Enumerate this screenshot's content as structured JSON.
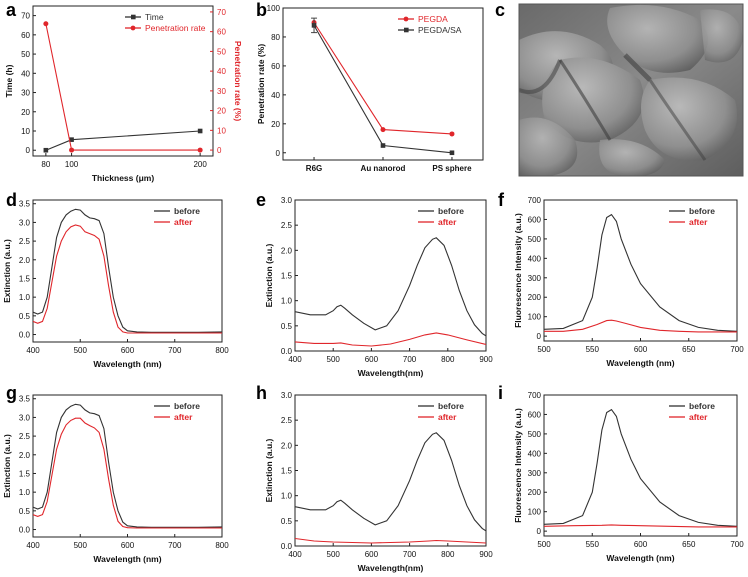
{
  "colors": {
    "black": "#333333",
    "red": "#e0262b",
    "axis": "#222222"
  },
  "panels": [
    {
      "label": "a"
    },
    {
      "label": "b"
    },
    {
      "label": "c"
    },
    {
      "label": "d"
    },
    {
      "label": "e"
    },
    {
      "label": "f"
    },
    {
      "label": "g"
    },
    {
      "label": "h"
    },
    {
      "label": "i"
    }
  ],
  "chart_data": [
    {
      "panel": "a",
      "type": "line",
      "xlabel": "Thickness (μm)",
      "ylabel": "Time (h)",
      "ylabel_right": "Penetration rate (%)",
      "xlim": [
        70,
        210
      ],
      "xticks": [
        80,
        100,
        200
      ],
      "ylim": [
        -3,
        75
      ],
      "yticks": [
        0,
        10,
        20,
        30,
        40,
        50,
        60,
        70
      ],
      "ylim_right": [
        -3,
        73
      ],
      "yticks_right": [
        0,
        10,
        20,
        30,
        40,
        50,
        60,
        70
      ],
      "legend": "top-right",
      "series": [
        {
          "name": "Time",
          "axis": "left",
          "color": "#333333",
          "marker": "square",
          "x": [
            80,
            100,
            200
          ],
          "y": [
            0,
            5.5,
            10
          ]
        },
        {
          "name": "Penetration rate",
          "axis": "right",
          "color": "#e0262b",
          "marker": "circle",
          "x": [
            80,
            100,
            200
          ],
          "y": [
            64,
            0,
            0
          ]
        }
      ]
    },
    {
      "panel": "b",
      "type": "line",
      "xlabel": "",
      "ylabel": "Penetration rate (%)",
      "categories": [
        "R6G",
        "Au nanorod",
        "PS sphere"
      ],
      "ylim": [
        -5,
        100
      ],
      "yticks": [
        0,
        20,
        40,
        60,
        80,
        100
      ],
      "legend": "top-right",
      "series": [
        {
          "name": "PEGDA",
          "color": "#e0262b",
          "marker": "circle",
          "values": [
            90,
            16,
            13
          ]
        },
        {
          "name": "PEGDA/SA",
          "color": "#333333",
          "marker": "square",
          "values": [
            88,
            5,
            0
          ]
        }
      ]
    },
    {
      "panel": "d",
      "type": "line",
      "xlabel": "Wavelength (nm)",
      "ylabel": "Extinction (a.u.)",
      "xlim": [
        400,
        800
      ],
      "xticks": [
        400,
        500,
        600,
        700,
        800
      ],
      "ylim": [
        -0.2,
        3.6
      ],
      "yticks": [
        0.0,
        0.5,
        1.0,
        1.5,
        2.0,
        2.5,
        3.0,
        3.5
      ],
      "yfmt": 1,
      "legend": "top-right",
      "series": [
        {
          "name": "before",
          "color": "#333333",
          "x": [
            400,
            410,
            420,
            430,
            440,
            450,
            460,
            470,
            480,
            490,
            500,
            510,
            520,
            530,
            540,
            550,
            560,
            570,
            580,
            590,
            600,
            620,
            650,
            700,
            750,
            800
          ],
          "y": [
            0.6,
            0.55,
            0.6,
            1.0,
            1.8,
            2.6,
            3.0,
            3.2,
            3.3,
            3.35,
            3.33,
            3.2,
            3.12,
            3.1,
            3.05,
            2.7,
            1.8,
            1.0,
            0.5,
            0.2,
            0.1,
            0.07,
            0.06,
            0.06,
            0.06,
            0.07
          ]
        },
        {
          "name": "after",
          "color": "#e0262b",
          "x": [
            400,
            410,
            420,
            430,
            440,
            450,
            460,
            470,
            480,
            490,
            500,
            510,
            520,
            530,
            540,
            550,
            560,
            570,
            580,
            590,
            600,
            620,
            650,
            700,
            750,
            800
          ],
          "y": [
            0.35,
            0.3,
            0.35,
            0.7,
            1.4,
            2.1,
            2.5,
            2.75,
            2.88,
            2.93,
            2.9,
            2.75,
            2.7,
            2.65,
            2.55,
            2.1,
            1.3,
            0.6,
            0.2,
            0.07,
            0.04,
            0.04,
            0.04,
            0.04,
            0.04,
            0.04
          ]
        }
      ]
    },
    {
      "panel": "e",
      "type": "line",
      "xlabel": "Wavelength(nm)",
      "ylabel": "Extinction (a.u.)",
      "xlim": [
        400,
        900
      ],
      "xticks": [
        400,
        500,
        600,
        700,
        800,
        900
      ],
      "ylim": [
        0,
        3.0
      ],
      "yticks": [
        0.0,
        0.5,
        1.0,
        1.5,
        2.0,
        2.5,
        3.0
      ],
      "yfmt": 1,
      "legend": "top-right",
      "series": [
        {
          "name": "before",
          "color": "#333333",
          "x": [
            400,
            440,
            480,
            500,
            510,
            520,
            530,
            550,
            580,
            610,
            640,
            670,
            700,
            720,
            740,
            760,
            770,
            790,
            810,
            830,
            850,
            870,
            890,
            900
          ],
          "y": [
            0.78,
            0.72,
            0.72,
            0.8,
            0.88,
            0.91,
            0.85,
            0.72,
            0.55,
            0.42,
            0.5,
            0.8,
            1.3,
            1.7,
            2.05,
            2.22,
            2.25,
            2.1,
            1.7,
            1.2,
            0.8,
            0.52,
            0.35,
            0.3
          ]
        },
        {
          "name": "after",
          "color": "#e0262b",
          "x": [
            400,
            450,
            500,
            520,
            550,
            600,
            650,
            700,
            740,
            770,
            800,
            850,
            900
          ],
          "y": [
            0.18,
            0.15,
            0.15,
            0.16,
            0.12,
            0.1,
            0.14,
            0.23,
            0.32,
            0.36,
            0.32,
            0.22,
            0.13
          ]
        }
      ]
    },
    {
      "panel": "f",
      "type": "line",
      "xlabel": "Wavelength (nm)",
      "ylabel": "Fluorescence Intensity (a.u.)",
      "xlim": [
        500,
        700
      ],
      "xticks": [
        500,
        550,
        600,
        650,
        700
      ],
      "ylim": [
        -25,
        700
      ],
      "yticks": [
        0,
        100,
        200,
        300,
        400,
        500,
        600,
        700
      ],
      "yfmt": 0,
      "legend": "top-right",
      "series": [
        {
          "name": "before",
          "color": "#333333",
          "x": [
            500,
            520,
            540,
            550,
            555,
            560,
            565,
            570,
            575,
            580,
            590,
            600,
            620,
            640,
            660,
            680,
            700
          ],
          "y": [
            35,
            40,
            80,
            200,
            350,
            520,
            610,
            625,
            590,
            500,
            370,
            270,
            150,
            80,
            45,
            30,
            25
          ]
        },
        {
          "name": "after",
          "color": "#e0262b",
          "x": [
            500,
            520,
            540,
            555,
            565,
            570,
            575,
            585,
            600,
            620,
            640,
            660,
            680,
            700
          ],
          "y": [
            25,
            25,
            35,
            60,
            80,
            82,
            78,
            65,
            45,
            30,
            25,
            22,
            22,
            22
          ]
        }
      ]
    },
    {
      "panel": "g",
      "type": "line",
      "xlabel": "Wavelength (nm)",
      "ylabel": "Extinction (a.u.)",
      "xlim": [
        400,
        800
      ],
      "xticks": [
        400,
        500,
        600,
        700,
        800
      ],
      "ylim": [
        -0.2,
        3.6
      ],
      "yticks": [
        0.0,
        0.5,
        1.0,
        1.5,
        2.0,
        2.5,
        3.0,
        3.5
      ],
      "yfmt": 1,
      "legend": "top-right",
      "series": [
        {
          "name": "before",
          "color": "#333333",
          "x": [
            400,
            410,
            420,
            430,
            440,
            450,
            460,
            470,
            480,
            490,
            500,
            510,
            520,
            530,
            540,
            550,
            560,
            570,
            580,
            590,
            600,
            620,
            650,
            700,
            750,
            800
          ],
          "y": [
            0.6,
            0.55,
            0.6,
            1.0,
            1.8,
            2.6,
            3.0,
            3.2,
            3.3,
            3.35,
            3.33,
            3.2,
            3.12,
            3.1,
            3.05,
            2.7,
            1.8,
            1.0,
            0.5,
            0.2,
            0.1,
            0.07,
            0.06,
            0.06,
            0.06,
            0.07
          ]
        },
        {
          "name": "after",
          "color": "#e0262b",
          "x": [
            400,
            410,
            420,
            430,
            440,
            450,
            460,
            470,
            480,
            490,
            500,
            510,
            520,
            530,
            540,
            550,
            560,
            570,
            580,
            590,
            600,
            620,
            650,
            700,
            750,
            800
          ],
          "y": [
            0.4,
            0.35,
            0.4,
            0.75,
            1.45,
            2.15,
            2.55,
            2.8,
            2.92,
            2.98,
            2.98,
            2.85,
            2.78,
            2.72,
            2.6,
            2.15,
            1.35,
            0.65,
            0.22,
            0.08,
            0.05,
            0.04,
            0.04,
            0.04,
            0.04,
            0.04
          ]
        }
      ]
    },
    {
      "panel": "h",
      "type": "line",
      "xlabel": "Wavelength(nm)",
      "ylabel": "Extinction (a.u.)",
      "xlim": [
        400,
        900
      ],
      "xticks": [
        400,
        500,
        600,
        700,
        800,
        900
      ],
      "ylim": [
        0,
        3.0
      ],
      "yticks": [
        0.0,
        0.5,
        1.0,
        1.5,
        2.0,
        2.5,
        3.0
      ],
      "yfmt": 1,
      "legend": "top-right",
      "series": [
        {
          "name": "before",
          "color": "#333333",
          "x": [
            400,
            440,
            480,
            500,
            510,
            520,
            530,
            550,
            580,
            610,
            640,
            670,
            700,
            720,
            740,
            760,
            770,
            790,
            810,
            830,
            850,
            870,
            890,
            900
          ],
          "y": [
            0.78,
            0.72,
            0.72,
            0.8,
            0.88,
            0.91,
            0.85,
            0.72,
            0.55,
            0.42,
            0.5,
            0.8,
            1.3,
            1.7,
            2.05,
            2.22,
            2.25,
            2.1,
            1.7,
            1.2,
            0.8,
            0.52,
            0.35,
            0.3
          ]
        },
        {
          "name": "after",
          "color": "#e0262b",
          "x": [
            400,
            450,
            500,
            550,
            600,
            650,
            700,
            750,
            770,
            800,
            850,
            900
          ],
          "y": [
            0.15,
            0.1,
            0.08,
            0.07,
            0.06,
            0.07,
            0.08,
            0.1,
            0.11,
            0.1,
            0.08,
            0.06
          ]
        }
      ]
    },
    {
      "panel": "i",
      "type": "line",
      "xlabel": "Wavelength (nm)",
      "ylabel": "Fluorescence Intensity (a.u.)",
      "xlim": [
        500,
        700
      ],
      "xticks": [
        500,
        550,
        600,
        650,
        700
      ],
      "ylim": [
        -25,
        700
      ],
      "yticks": [
        0,
        100,
        200,
        300,
        400,
        500,
        600,
        700
      ],
      "yfmt": 0,
      "legend": "top-right",
      "series": [
        {
          "name": "before",
          "color": "#333333",
          "x": [
            500,
            520,
            540,
            550,
            555,
            560,
            565,
            570,
            575,
            580,
            590,
            600,
            620,
            640,
            660,
            680,
            700
          ],
          "y": [
            35,
            40,
            80,
            200,
            350,
            520,
            610,
            625,
            590,
            500,
            370,
            270,
            150,
            80,
            45,
            30,
            25
          ]
        },
        {
          "name": "after",
          "color": "#e0262b",
          "x": [
            500,
            530,
            560,
            570,
            580,
            600,
            630,
            660,
            700
          ],
          "y": [
            25,
            28,
            30,
            32,
            30,
            28,
            25,
            22,
            22
          ]
        }
      ]
    }
  ]
}
